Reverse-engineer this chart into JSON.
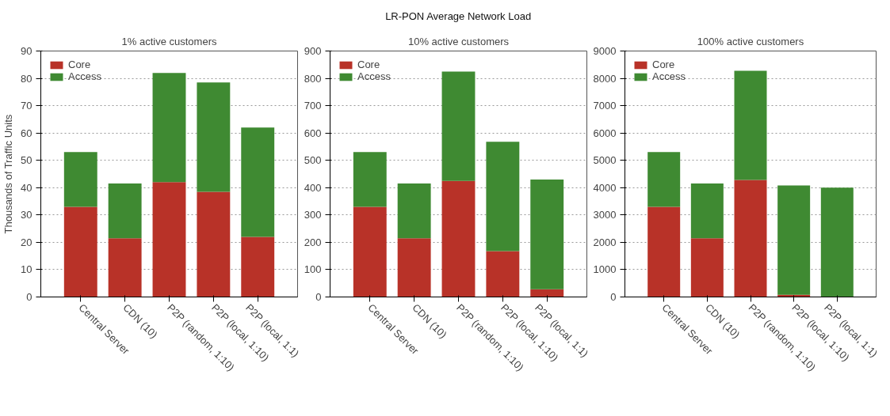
{
  "chart_data": [
    {
      "type": "bar",
      "subtitle": "1% active customers",
      "ylabel": "Thousands of Traffic Units",
      "stacked": true,
      "grid": "y",
      "legend": "top left",
      "categories": [
        "Central Server",
        "CDN (10)",
        "P2P (random, 1:10)",
        "P2P (local, 1:10)",
        "P2P (local, 1:1)"
      ],
      "series": [
        {
          "name": "Core",
          "color": "#b83228",
          "values": [
            33,
            21.5,
            42,
            38.5,
            22
          ]
        },
        {
          "name": "Access",
          "color": "#3f8a32",
          "values": [
            20,
            20,
            40,
            40,
            40
          ]
        }
      ],
      "ylim": [
        0,
        90
      ],
      "yticks": [
        0,
        10,
        20,
        30,
        40,
        50,
        60,
        70,
        80,
        90
      ]
    },
    {
      "type": "bar",
      "title": "LR-PON Average Network Load",
      "subtitle": "10% active customers",
      "stacked": true,
      "grid": "y",
      "legend": "top left",
      "categories": [
        "Central Server",
        "CDN (10)",
        "P2P (random, 1:10)",
        "P2P (local, 1:10)",
        "P2P (local, 1:1)"
      ],
      "series": [
        {
          "name": "Core",
          "color": "#b83228",
          "values": [
            330,
            215,
            425,
            168,
            28
          ]
        },
        {
          "name": "Access",
          "color": "#3f8a32",
          "values": [
            200,
            200,
            400,
            400,
            402
          ]
        }
      ],
      "ylim": [
        0,
        900
      ],
      "yticks": [
        0,
        100,
        200,
        300,
        400,
        500,
        600,
        700,
        800,
        900
      ]
    },
    {
      "type": "bar",
      "subtitle": "100% active customers",
      "stacked": true,
      "grid": "y",
      "legend": "top left",
      "categories": [
        "Central Server",
        "CDN (10)",
        "P2P (random, 1:10)",
        "P2P (local, 1:10)",
        "P2P (local, 1:1)"
      ],
      "series": [
        {
          "name": "Core",
          "color": "#b83228",
          "values": [
            3300,
            2150,
            4280,
            80,
            null
          ]
        },
        {
          "name": "Access",
          "color": "#3f8a32",
          "values": [
            2000,
            2000,
            4000,
            4000,
            4000
          ]
        }
      ],
      "ylim": [
        0,
        9000
      ],
      "yticks": [
        0,
        1000,
        2000,
        3000,
        4000,
        5000,
        6000,
        7000,
        8000,
        9000
      ]
    }
  ]
}
